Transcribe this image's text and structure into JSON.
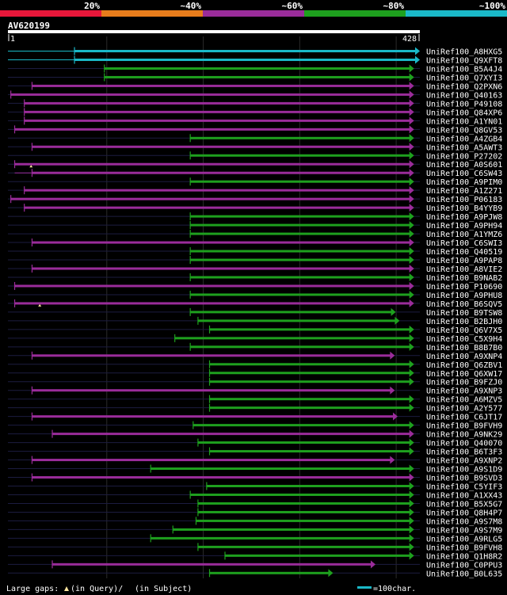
{
  "query": {
    "name": "AV620199",
    "start_label": "1",
    "end_label": "428",
    "length": 428
  },
  "identity_legend": {
    "labels": [
      "20%",
      "~40%",
      "~60%",
      "~80%",
      "~100%"
    ],
    "colors": [
      "#e8173a",
      "#e87d1c",
      "#9a2c9a",
      "#1ea01e",
      "#1ab8c8"
    ]
  },
  "footer": {
    "gaps_label": "Large gaps:",
    "gaps_query": "(in Query)/",
    "gaps_subject": "(in Subject)",
    "scale_label": "=100char."
  },
  "chart_data": {
    "type": "alignment",
    "title": "AV620199",
    "x_range": [
      1,
      428
    ],
    "identity_bins": [
      "20%",
      "~40%",
      "~60%",
      "~80%",
      "~100%"
    ],
    "hits": [
      {
        "label": "UniRef100_A8HXG5",
        "start": 70,
        "end": 428,
        "identity": "~100%",
        "gapped_from": 1
      },
      {
        "label": "UniRef100_Q9XFT8",
        "start": 70,
        "end": 428,
        "identity": "~100%",
        "gapped_from": 1
      },
      {
        "label": "UniRef100_B5A4J4",
        "start": 101,
        "end": 422,
        "identity": "~80%"
      },
      {
        "label": "UniRef100_Q7XYI3",
        "start": 101,
        "end": 422,
        "identity": "~80%"
      },
      {
        "label": "UniRef100_Q2PXN6",
        "start": 26,
        "end": 422,
        "identity": "~60%",
        "gapped_from": 26
      },
      {
        "label": "UniRef100_Q40163",
        "start": 4,
        "end": 422,
        "identity": "~60%",
        "gapped_from": 4
      },
      {
        "label": "UniRef100_P49108",
        "start": 18,
        "end": 422,
        "identity": "~60%",
        "gapped_from": 18
      },
      {
        "label": "UniRef100_Q84XP6",
        "start": 18,
        "end": 422,
        "identity": "~60%",
        "gapped_from": 18
      },
      {
        "label": "UniRef100_A1YN01",
        "start": 18,
        "end": 422,
        "identity": "~60%",
        "gapped_from": 18
      },
      {
        "label": "UniRef100_Q8GV53",
        "start": 8,
        "end": 422,
        "identity": "~60%"
      },
      {
        "label": "UniRef100_A4ZGB4",
        "start": 190,
        "end": 422,
        "identity": "~80%"
      },
      {
        "label": "UniRef100_A5AWT3",
        "start": 26,
        "end": 422,
        "identity": "~60%",
        "gapped_from": 26
      },
      {
        "label": "UniRef100_P27202",
        "start": 190,
        "end": 422,
        "identity": "~80%"
      },
      {
        "label": "UniRef100_A0S601",
        "start": 8,
        "end": 422,
        "identity": "~60%",
        "gapped_from": 8,
        "query_gap_at": 25
      },
      {
        "label": "UniRef100_C6SW43",
        "start": 26,
        "end": 422,
        "identity": "~60%",
        "gapped_from": 8
      },
      {
        "label": "UniRef100_A9PIM0",
        "start": 190,
        "end": 422,
        "identity": "~80%"
      },
      {
        "label": "UniRef100_A1Z271",
        "start": 18,
        "end": 422,
        "identity": "~60%",
        "gapped_from": 18
      },
      {
        "label": "UniRef100_P06183",
        "start": 4,
        "end": 422,
        "identity": "~60%",
        "gapped_from": 4
      },
      {
        "label": "UniRef100_B4YYB9",
        "start": 18,
        "end": 422,
        "identity": "~60%",
        "gapped_from": 18
      },
      {
        "label": "UniRef100_A9PJW8",
        "start": 190,
        "end": 422,
        "identity": "~80%"
      },
      {
        "label": "UniRef100_A9PH94",
        "start": 190,
        "end": 422,
        "identity": "~80%"
      },
      {
        "label": "UniRef100_A1YMZ6",
        "start": 190,
        "end": 422,
        "identity": "~80%"
      },
      {
        "label": "UniRef100_C6SWI3",
        "start": 26,
        "end": 422,
        "identity": "~60%"
      },
      {
        "label": "UniRef100_Q40519",
        "start": 190,
        "end": 422,
        "identity": "~80%"
      },
      {
        "label": "UniRef100_A9PAP8",
        "start": 190,
        "end": 422,
        "identity": "~80%"
      },
      {
        "label": "UniRef100_A8VIE2",
        "start": 26,
        "end": 422,
        "identity": "~60%",
        "gapped_from": 26
      },
      {
        "label": "UniRef100_B9NAB2",
        "start": 190,
        "end": 422,
        "identity": "~80%"
      },
      {
        "label": "UniRef100_P10690",
        "start": 8,
        "end": 422,
        "identity": "~60%"
      },
      {
        "label": "UniRef100_A9PHU8",
        "start": 190,
        "end": 422,
        "identity": "~80%"
      },
      {
        "label": "UniRef100_B6SQV5",
        "start": 8,
        "end": 422,
        "identity": "~60%",
        "gapped_from": 8,
        "query_gap_at": 34
      },
      {
        "label": "UniRef100_B9TSW8",
        "start": 190,
        "end": 403,
        "identity": "~80%"
      },
      {
        "label": "UniRef100_B2BJH0",
        "start": 198,
        "end": 407,
        "identity": "~80%"
      },
      {
        "label": "UniRef100_Q6V7X5",
        "start": 210,
        "end": 422,
        "identity": "~80%"
      },
      {
        "label": "UniRef100_C5X9H4",
        "start": 174,
        "end": 422,
        "identity": "~80%"
      },
      {
        "label": "UniRef100_B8B7B0",
        "start": 190,
        "end": 422,
        "identity": "~80%"
      },
      {
        "label": "UniRef100_A9XNP4",
        "start": 26,
        "end": 402,
        "identity": "~60%",
        "gapped_from": 26
      },
      {
        "label": "UniRef100_Q6ZBV1",
        "start": 210,
        "end": 422,
        "identity": "~80%"
      },
      {
        "label": "UniRef100_Q6XW17",
        "start": 210,
        "end": 422,
        "identity": "~80%"
      },
      {
        "label": "UniRef100_B9FZJ0",
        "start": 210,
        "end": 422,
        "identity": "~80%"
      },
      {
        "label": "UniRef100_A9XNP3",
        "start": 26,
        "end": 402,
        "identity": "~60%"
      },
      {
        "label": "UniRef100_A6MZV5",
        "start": 210,
        "end": 422,
        "identity": "~80%"
      },
      {
        "label": "UniRef100_A2Y577",
        "start": 210,
        "end": 422,
        "identity": "~80%"
      },
      {
        "label": "UniRef100_C6JT17",
        "start": 26,
        "end": 405,
        "identity": "~60%"
      },
      {
        "label": "UniRef100_B9FVH9",
        "start": 193,
        "end": 422,
        "identity": "~80%"
      },
      {
        "label": "UniRef100_A9NK29",
        "start": 47,
        "end": 422,
        "identity": "~60%",
        "gapped_from": 47
      },
      {
        "label": "UniRef100_Q40070",
        "start": 198,
        "end": 422,
        "identity": "~80%"
      },
      {
        "label": "UniRef100_B6T3F3",
        "start": 210,
        "end": 422,
        "identity": "~80%"
      },
      {
        "label": "UniRef100_A9XNP2",
        "start": 26,
        "end": 402,
        "identity": "~60%"
      },
      {
        "label": "UniRef100_A9S1D9",
        "start": 149,
        "end": 422,
        "identity": "~80%",
        "gapped_from": 149
      },
      {
        "label": "UniRef100_B9SVD3",
        "start": 26,
        "end": 422,
        "identity": "~60%",
        "gapped_from": 26
      },
      {
        "label": "UniRef100_C5YIF3",
        "start": 207,
        "end": 422,
        "identity": "~80%"
      },
      {
        "label": "UniRef100_A1XX43",
        "start": 190,
        "end": 422,
        "identity": "~80%"
      },
      {
        "label": "UniRef100_B5X5G7",
        "start": 198,
        "end": 422,
        "identity": "~80%"
      },
      {
        "label": "UniRef100_Q8H4P7",
        "start": 198,
        "end": 422,
        "identity": "~80%"
      },
      {
        "label": "UniRef100_A9S7M8",
        "start": 196,
        "end": 422,
        "identity": "~80%"
      },
      {
        "label": "UniRef100_A9S7M9",
        "start": 172,
        "end": 422,
        "identity": "~80%"
      },
      {
        "label": "UniRef100_A9RLG5",
        "start": 149,
        "end": 422,
        "identity": "~80%",
        "gapped_from": 149
      },
      {
        "label": "UniRef100_B9FVH8",
        "start": 198,
        "end": 422,
        "identity": "~80%"
      },
      {
        "label": "UniRef100_Q1H8R2",
        "start": 226,
        "end": 422,
        "identity": "~80%"
      },
      {
        "label": "UniRef100_C0PPU3",
        "start": 47,
        "end": 382,
        "identity": "~60%",
        "gapped_from": 47
      },
      {
        "label": "UniRef100_B0L635",
        "start": 210,
        "end": 338,
        "identity": "~80%"
      }
    ]
  }
}
